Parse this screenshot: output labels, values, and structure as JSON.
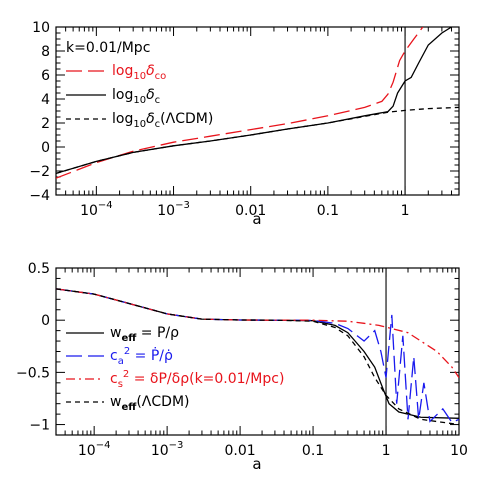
{
  "chart_data": [
    {
      "type": "line",
      "xlabel": "a",
      "ylabel": "",
      "xscale": "log",
      "xlim": [
        3e-05,
        5
      ],
      "ylim": [
        -4,
        10
      ],
      "xticks": [
        {
          "value": 0.0001,
          "base": "10",
          "exp": "−4"
        },
        {
          "value": 0.001,
          "base": "10",
          "exp": "−3"
        },
        {
          "value": 0.01,
          "label": "0.01"
        },
        {
          "value": 0.1,
          "label": "0.1"
        },
        {
          "value": 1,
          "label": "1"
        }
      ],
      "yticks": [
        -4,
        -2,
        0,
        2,
        4,
        6,
        8,
        10
      ],
      "vline": 1,
      "annotation": "k=0.01/Mpc",
      "legend_position": "top-left",
      "series": [
        {
          "name": "log10δco",
          "legend": {
            "main": "log",
            "sub": "10",
            "sym": "δ",
            "sub2": "co",
            "tail": ""
          },
          "color": "#e8141c",
          "style": "longdash",
          "points": [
            [
              3e-05,
              -2.6
            ],
            [
              0.0001,
              -1.3
            ],
            [
              0.0003,
              -0.35
            ],
            [
              0.001,
              0.4
            ],
            [
              0.003,
              0.9
            ],
            [
              0.01,
              1.45
            ],
            [
              0.03,
              1.95
            ],
            [
              0.1,
              2.6
            ],
            [
              0.3,
              3.3
            ],
            [
              0.5,
              3.8
            ],
            [
              0.6,
              4.4
            ],
            [
              0.7,
              5.4
            ],
            [
              0.85,
              7.2
            ],
            [
              1,
              8.0
            ],
            [
              1.3,
              9.0
            ],
            [
              1.7,
              10
            ]
          ]
        },
        {
          "name": "log10δc",
          "legend": {
            "main": "log",
            "sub": "10",
            "sym": "δ",
            "sub2": "c",
            "tail": ""
          },
          "color": "#000000",
          "style": "solid",
          "points": [
            [
              3e-05,
              -2.2
            ],
            [
              0.0001,
              -1.2
            ],
            [
              0.0003,
              -0.45
            ],
            [
              0.001,
              0.1
            ],
            [
              0.003,
              0.5
            ],
            [
              0.01,
              1.0
            ],
            [
              0.03,
              1.5
            ],
            [
              0.1,
              2.0
            ],
            [
              0.3,
              2.6
            ],
            [
              0.6,
              2.95
            ],
            [
              0.7,
              3.4
            ],
            [
              0.8,
              4.5
            ],
            [
              1,
              5.5
            ],
            [
              1.2,
              5.8
            ],
            [
              1.5,
              7.0
            ],
            [
              2,
              8.5
            ],
            [
              3,
              9.5
            ],
            [
              4,
              10
            ]
          ]
        },
        {
          "name": "log10δc(ΛCDM)",
          "legend": {
            "main": "log",
            "sub": "10",
            "sym": "δ",
            "sub2": "c",
            "tail": "(ΛCDM)"
          },
          "color": "#000000",
          "style": "shortdash",
          "points": [
            [
              3e-05,
              -2.2
            ],
            [
              0.0001,
              -1.2
            ],
            [
              0.0003,
              -0.45
            ],
            [
              0.001,
              0.1
            ],
            [
              0.003,
              0.5
            ],
            [
              0.01,
              1.0
            ],
            [
              0.03,
              1.5
            ],
            [
              0.1,
              2.0
            ],
            [
              0.3,
              2.55
            ],
            [
              0.6,
              2.9
            ],
            [
              1,
              3.05
            ],
            [
              2,
              3.2
            ],
            [
              5,
              3.3
            ]
          ]
        }
      ]
    },
    {
      "type": "line",
      "xlabel": "a",
      "ylabel": "",
      "xscale": "log",
      "xlim": [
        3e-05,
        10
      ],
      "ylim": [
        -1.1,
        0.5
      ],
      "xticks": [
        {
          "value": 0.0001,
          "base": "10",
          "exp": "−4"
        },
        {
          "value": 0.001,
          "base": "10",
          "exp": "−3"
        },
        {
          "value": 0.01,
          "label": "0.01"
        },
        {
          "value": 0.1,
          "label": "0.1"
        },
        {
          "value": 1,
          "label": "1"
        },
        {
          "value": 10,
          "label": "10"
        }
      ],
      "yticks": [
        -1,
        -0.5,
        0,
        0.5
      ],
      "vline": 1,
      "legend_position": "bottom-left",
      "series": [
        {
          "name": "weff = P/ρ",
          "legend_html": "w<sub><b>eff</b></sub> &nbsp;= &nbsp;P/ρ",
          "color": "#000000",
          "style": "solid",
          "points": [
            [
              3e-05,
              0.3
            ],
            [
              0.0001,
              0.25
            ],
            [
              0.0003,
              0.16
            ],
            [
              0.001,
              0.06
            ],
            [
              0.003,
              0.01
            ],
            [
              0.01,
              0.002
            ],
            [
              0.03,
              0.0
            ],
            [
              0.1,
              -0.005
            ],
            [
              0.2,
              -0.05
            ],
            [
              0.3,
              -0.12
            ],
            [
              0.5,
              -0.3
            ],
            [
              0.7,
              -0.45
            ],
            [
              0.9,
              -0.65
            ],
            [
              1.1,
              -0.8
            ],
            [
              1.5,
              -0.88
            ],
            [
              3,
              -0.93
            ],
            [
              10,
              -0.94
            ]
          ]
        },
        {
          "name": "ca2 = Ṗ/ρ̇",
          "legend_html": "c<sub>a</sub><sup>2</sup> &nbsp;= &nbsp;Ṗ/ρ̇",
          "color": "#1a1aee",
          "style": "longdash",
          "points": [
            [
              3e-05,
              0.3
            ],
            [
              0.0001,
              0.25
            ],
            [
              0.0003,
              0.16
            ],
            [
              0.001,
              0.06
            ],
            [
              0.003,
              0.01
            ],
            [
              0.01,
              0.002
            ],
            [
              0.03,
              0.0
            ],
            [
              0.1,
              -0.002
            ],
            [
              0.2,
              -0.03
            ],
            [
              0.3,
              -0.08
            ],
            [
              0.5,
              -0.2
            ],
            [
              0.7,
              -0.1
            ],
            [
              0.85,
              -0.3
            ],
            [
              1.0,
              -0.55
            ],
            [
              1.2,
              0.05
            ],
            [
              1.4,
              -0.8
            ],
            [
              1.7,
              -0.15
            ],
            [
              2.0,
              -0.95
            ],
            [
              2.4,
              -0.35
            ],
            [
              2.8,
              -0.95
            ],
            [
              3.3,
              -0.6
            ],
            [
              4,
              -0.97
            ],
            [
              6,
              -0.85
            ],
            [
              8,
              -0.98
            ],
            [
              10,
              -0.95
            ]
          ]
        },
        {
          "name": "cs2 = δP/δρ(k=0.01/Mpc)",
          "legend_html": "c<sub>s</sub><sup>2</sup> &nbsp;= &nbsp;δP/δρ(k=0.01/Mpc)",
          "color": "#e8141c",
          "style": "dashdot",
          "points": [
            [
              3e-05,
              0.3
            ],
            [
              0.0001,
              0.25
            ],
            [
              0.0003,
              0.16
            ],
            [
              0.001,
              0.06
            ],
            [
              0.003,
              0.01
            ],
            [
              0.01,
              0.002
            ],
            [
              0.03,
              0.0
            ],
            [
              0.1,
              0.0
            ],
            [
              0.3,
              -0.01
            ],
            [
              0.5,
              -0.03
            ],
            [
              0.8,
              -0.05
            ],
            [
              1.2,
              -0.08
            ],
            [
              2,
              -0.12
            ],
            [
              3,
              -0.2
            ],
            [
              5,
              -0.3
            ],
            [
              8,
              -0.45
            ],
            [
              10,
              -0.55
            ]
          ]
        },
        {
          "name": "weff(ΛCDM)",
          "legend_html": "w<sub><b>eff</b></sub>(ΛCDM)",
          "color": "#000000",
          "style": "shortdash",
          "points": [
            [
              3e-05,
              0.3
            ],
            [
              0.0001,
              0.25
            ],
            [
              0.0003,
              0.16
            ],
            [
              0.001,
              0.06
            ],
            [
              0.003,
              0.01
            ],
            [
              0.01,
              0.002
            ],
            [
              0.03,
              0.0
            ],
            [
              0.1,
              -0.01
            ],
            [
              0.2,
              -0.07
            ],
            [
              0.3,
              -0.15
            ],
            [
              0.5,
              -0.35
            ],
            [
              0.7,
              -0.55
            ],
            [
              1,
              -0.72
            ],
            [
              1.5,
              -0.85
            ],
            [
              3,
              -0.95
            ],
            [
              10,
              -1.0
            ]
          ]
        }
      ]
    }
  ]
}
